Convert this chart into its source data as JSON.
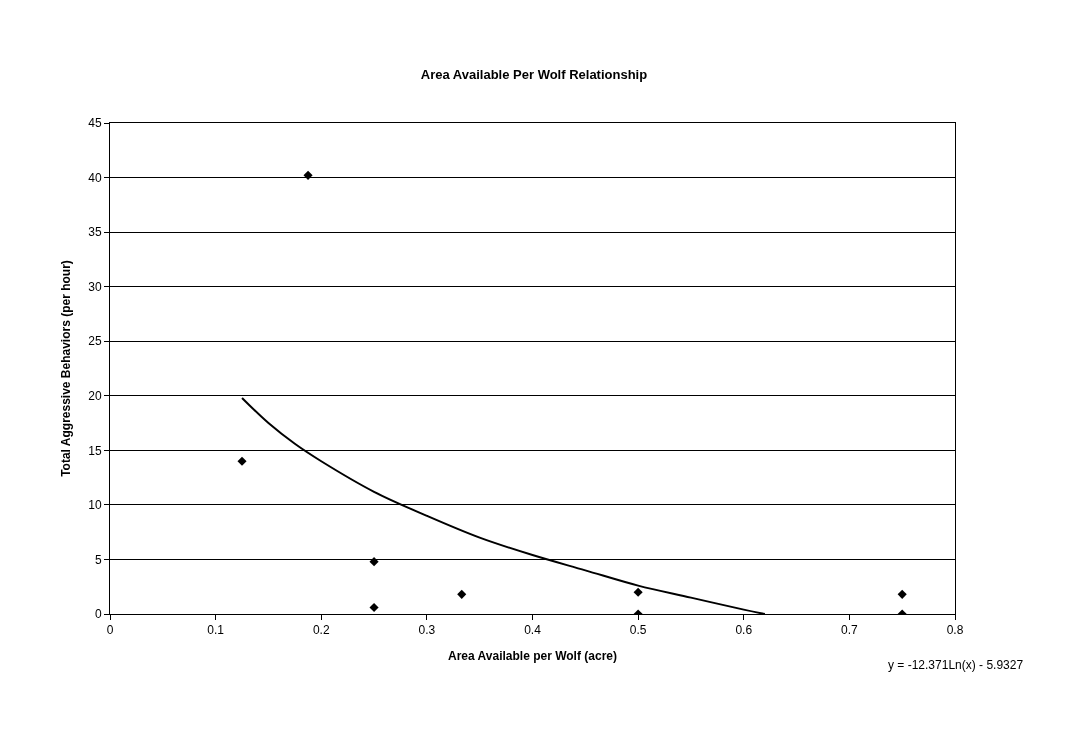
{
  "chart_data": {
    "type": "scatter",
    "title": "Area Available Per Wolf Relationship",
    "xlabel": "Area Available per Wolf (acre)",
    "ylabel": "Total Aggressive Behaviors (per hour)",
    "x": [
      0.125,
      0.1875,
      0.25,
      0.25,
      0.333,
      0.5,
      0.5,
      0.75,
      0.75
    ],
    "series": [
      {
        "color": "#000000",
        "values": [
          14,
          40.2,
          4.8,
          0.6,
          1.8,
          2,
          0,
          1.8,
          0
        ],
        "marker": "diamond"
      },
      {
        "type": "line",
        "color": "#000000",
        "x": [
          0.125,
          0.15,
          0.175,
          0.2,
          0.25,
          0.3,
          0.35,
          0.4,
          0.45,
          0.5,
          0.55,
          0.6,
          0.62
        ],
        "values": [
          19.8,
          17.5,
          15.6,
          14,
          11.2,
          9,
          7,
          5.4,
          4,
          2.6,
          1.5,
          0.4,
          0
        ],
        "marker": "none",
        "line_style": "solid"
      }
    ],
    "annotations": [
      "y = -12.371Ln(x) - 5.9327"
    ],
    "xlim": [
      0,
      0.8
    ],
    "xticks": [
      0,
      0.1,
      0.2,
      0.3,
      0.4,
      0.5,
      0.6,
      0.7,
      0.8
    ],
    "ylim": [
      0,
      45
    ],
    "yticks": [
      0,
      5,
      10,
      15,
      20,
      25,
      30,
      35,
      40,
      45
    ],
    "grid": "y"
  }
}
